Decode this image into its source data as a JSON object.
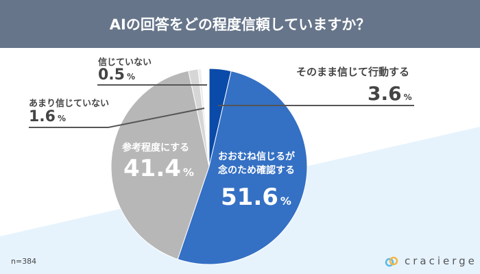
{
  "header": {
    "title": "AIの回答をどの程度信頼していますか？"
  },
  "footer": {
    "sample": "n=384",
    "brand": "cracierge"
  },
  "colors": {
    "header": "#66758a",
    "background_accent": "#e6f3fd"
  },
  "chart_data": {
    "type": "pie",
    "title": "AIの回答をどの程度信頼していますか？",
    "start": "top, clockwise",
    "unit": "%",
    "slices": [
      {
        "label": "そのまま信じて行動する",
        "value": 3.6,
        "color": "#0a4aa8"
      },
      {
        "label": "おおむね信じるが念のため確認する",
        "label_lines": [
          "おおむね信じるが",
          "念のため確認する"
        ],
        "value": 51.6,
        "color": "#3470c4"
      },
      {
        "label": "参考程度にする",
        "value": 41.4,
        "color": "#b7b7b7"
      },
      {
        "label": "あまり信じていない",
        "value": 1.6,
        "color": "#d6d6d6"
      },
      {
        "label": "信じていない",
        "value": 0.5,
        "color": "#ededed"
      }
    ]
  }
}
